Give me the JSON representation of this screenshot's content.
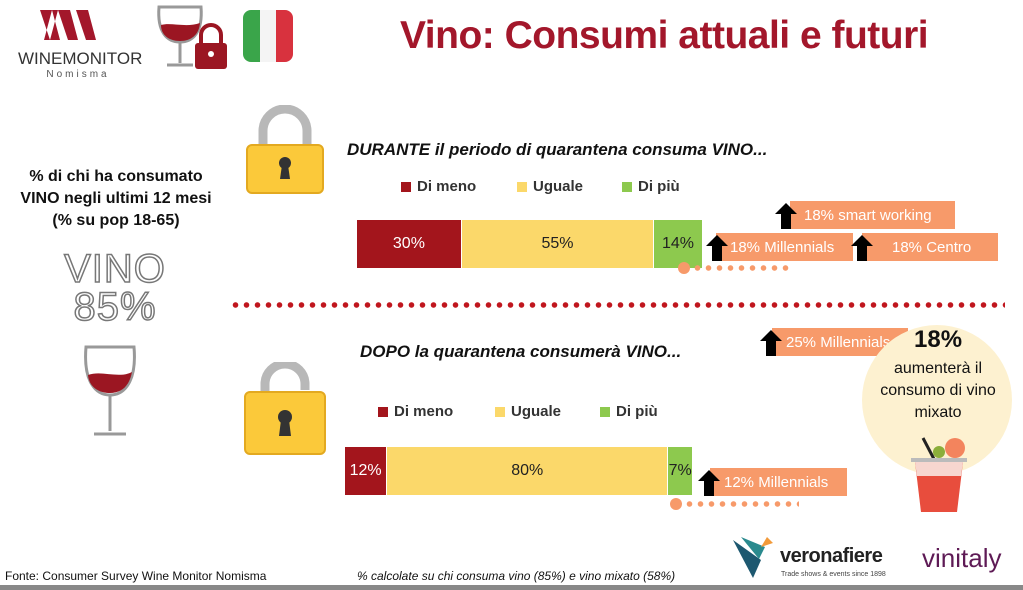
{
  "header": {
    "title": "Vino: Consumi attuali e futuri",
    "logo_text": "WINEMONITOR",
    "logo_sub": "Nomisma"
  },
  "left": {
    "caption_line1": "% di chi ha consumato",
    "caption_line2": "VINO negli ultimi 12 mesi",
    "caption_line3": "(% su pop 18-65)",
    "big_label": "VINO",
    "big_value": "85%"
  },
  "chart_data": [
    {
      "type": "bar",
      "stacked": true,
      "orientation": "horizontal",
      "title_strong": "DURANTE",
      "title_rest": " il periodo di quarantena consuma VINO...",
      "categories": [
        "Di meno",
        "Uguale",
        "Di più"
      ],
      "values": [
        30,
        55,
        14
      ],
      "labels": [
        "30%",
        "55%",
        "14%"
      ],
      "colors": [
        "#a3151c",
        "#fbd86a",
        "#8dc94e"
      ],
      "label_colors": [
        "#ffffff",
        "#222222",
        "#222222"
      ]
    },
    {
      "type": "bar",
      "stacked": true,
      "orientation": "horizontal",
      "title_strong": "DOPO",
      "title_rest": " la quarantena consumerà VINO...",
      "categories": [
        "Di meno",
        "Uguale",
        "Di più"
      ],
      "values": [
        12,
        80,
        7
      ],
      "labels": [
        "12%",
        "80%",
        "7%"
      ],
      "colors": [
        "#a3151c",
        "#fbd86a",
        "#8dc94e"
      ],
      "label_colors": [
        "#ffffff",
        "#222222",
        "#222222"
      ]
    }
  ],
  "callouts": {
    "during": [
      "18% smart working",
      "18% Millennials",
      "18% Centro"
    ],
    "after": [
      "25% Millennials",
      "12% Millennials"
    ]
  },
  "mixato": {
    "value": "18%",
    "text": "aumenterà il consumo di vino mixato"
  },
  "footer": {
    "source": "Fonte: Consumer Survey Wine Monitor Nomisma",
    "note": "% calcolate su chi consuma vino (85%) e vino mixato (58%)",
    "verona": "veronafiere",
    "verona_sub": "Trade shows & events since 1898",
    "vinitaly": "vinitaly"
  },
  "colors": {
    "accent": "#a3172b",
    "callout": "#f79a6a"
  }
}
